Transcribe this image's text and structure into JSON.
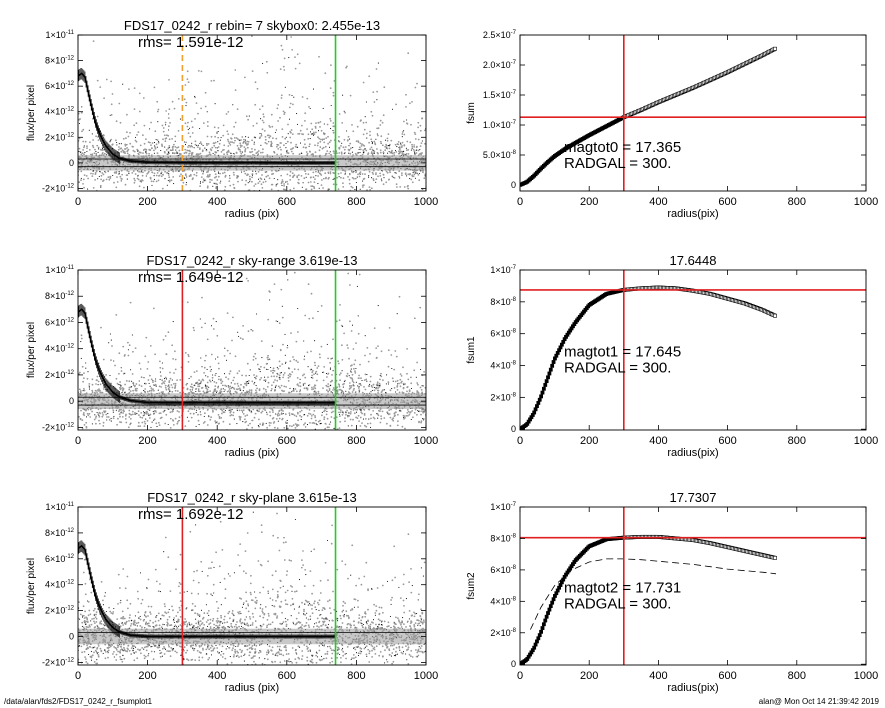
{
  "footer": {
    "left": "/data/alan/fds2/FDS17_0242_r_fsumplot1",
    "right": "alan@  Mon Oct 14 21:39:42 2019"
  },
  "colors": {
    "data_dark": "#000000",
    "data_gray": "#9a9a9a",
    "red_line": "#e02020",
    "green_line": "#22cc22",
    "orange_line": "#f0a030"
  },
  "chart_data": [
    {
      "id": "profile-1",
      "type": "scatter",
      "title": "FDS17_0242_r rebin= 7    skybox0:  2.455e-13",
      "annotation": "rms= 1.591e-12",
      "xlabel": "radius (pix)",
      "ylabel": "flux/per pixel",
      "xlim": [
        0,
        1000
      ],
      "ylim": [
        -2.2e-12,
        1e-11
      ],
      "xticks": [
        0,
        200,
        400,
        600,
        800,
        1000
      ],
      "xtick_labels": [
        "0",
        "200",
        "400",
        "600",
        "800",
        "1000"
      ],
      "yticks": [
        -2e-12,
        0,
        2e-12,
        4e-12,
        6e-12,
        8e-12,
        1e-11
      ],
      "ytick_labels": [
        {
          "b": "-2×10",
          "e": "-12"
        },
        {
          "b": "0",
          "e": ""
        },
        {
          "b": "2×10",
          "e": "-12"
        },
        {
          "b": "4×10",
          "e": "-12"
        },
        {
          "b": "6×10",
          "e": "-12"
        },
        {
          "b": "8×10",
          "e": "-12"
        },
        {
          "b": "1×10",
          "e": "-11"
        }
      ],
      "vlines": [
        {
          "x": 300,
          "color": "orange",
          "dashed": true
        },
        {
          "x": 740,
          "color": "green",
          "dashed": false
        }
      ],
      "hlines": [
        -3e-13,
        3e-13
      ],
      "profile": [
        [
          0,
          6.8e-12
        ],
        [
          10,
          7e-12
        ],
        [
          20,
          6.7e-12
        ],
        [
          30,
          5.5e-12
        ],
        [
          40,
          4.3e-12
        ],
        [
          50,
          3.2e-12
        ],
        [
          60,
          2.4e-12
        ],
        [
          70,
          1.8e-12
        ],
        [
          80,
          1.3e-12
        ],
        [
          100,
          7e-13
        ],
        [
          120,
          3.5e-13
        ],
        [
          150,
          1.5e-13
        ],
        [
          200,
          5e-14
        ],
        [
          300,
          2e-14
        ],
        [
          400,
          1e-14
        ],
        [
          500,
          1e-14
        ],
        [
          600,
          0
        ],
        [
          740,
          0
        ]
      ]
    },
    {
      "id": "fsum-0",
      "type": "line",
      "title": "",
      "annotation_lines": [
        "magtot0 = 17.365",
        "RADGAL =    300."
      ],
      "xlabel": "radius(pix)",
      "ylabel": "fsum",
      "xlim": [
        0,
        1000
      ],
      "ylim": [
        -1e-08,
        2.5e-07
      ],
      "xticks": [
        0,
        200,
        400,
        600,
        800,
        1000
      ],
      "xtick_labels": [
        "0",
        "200",
        "400",
        "600",
        "800",
        "1000"
      ],
      "yticks": [
        0,
        5e-08,
        1e-07,
        1.5e-07,
        2e-07,
        2.5e-07
      ],
      "ytick_labels": [
        {
          "b": "0",
          "e": ""
        },
        {
          "b": "5.0×10",
          "e": "-8"
        },
        {
          "b": "1.0×10",
          "e": "-7"
        },
        {
          "b": "1.5×10",
          "e": "-7"
        },
        {
          "b": "2.0×10",
          "e": "-7"
        },
        {
          "b": "2.5×10",
          "e": "-7"
        }
      ],
      "vline": 300,
      "hline": 1.13e-07,
      "curve": [
        [
          0,
          0
        ],
        [
          20,
          5e-09
        ],
        [
          40,
          1.5e-08
        ],
        [
          60,
          2.7e-08
        ],
        [
          80,
          3.8e-08
        ],
        [
          100,
          4.8e-08
        ],
        [
          130,
          6e-08
        ],
        [
          160,
          7e-08
        ],
        [
          200,
          8.3e-08
        ],
        [
          250,
          9.8e-08
        ],
        [
          300,
          1.13e-07
        ],
        [
          350,
          1.25e-07
        ],
        [
          400,
          1.38e-07
        ],
        [
          450,
          1.5e-07
        ],
        [
          500,
          1.62e-07
        ],
        [
          550,
          1.75e-07
        ],
        [
          600,
          1.88e-07
        ],
        [
          650,
          2.02e-07
        ],
        [
          700,
          2.16e-07
        ],
        [
          740,
          2.28e-07
        ]
      ],
      "curve2": []
    },
    {
      "id": "profile-2",
      "type": "scatter",
      "title": "FDS17_0242_r sky-range  3.619e-13",
      "annotation": "rms= 1.649e-12",
      "xlabel": "radius (pix)",
      "ylabel": "flux/per pixel",
      "xlim": [
        0,
        1000
      ],
      "ylim": [
        -2.2e-12,
        1e-11
      ],
      "xticks": [
        0,
        200,
        400,
        600,
        800,
        1000
      ],
      "xtick_labels": [
        "0",
        "200",
        "400",
        "600",
        "800",
        "1000"
      ],
      "yticks": [
        -2e-12,
        0,
        2e-12,
        4e-12,
        6e-12,
        8e-12,
        1e-11
      ],
      "ytick_labels": [
        {
          "b": "-2×10",
          "e": "-12"
        },
        {
          "b": "0",
          "e": ""
        },
        {
          "b": "2×10",
          "e": "-12"
        },
        {
          "b": "4×10",
          "e": "-12"
        },
        {
          "b": "6×10",
          "e": "-12"
        },
        {
          "b": "8×10",
          "e": "-12"
        },
        {
          "b": "1×10",
          "e": "-11"
        }
      ],
      "vlines": [
        {
          "x": 300,
          "color": "red",
          "dashed": false
        },
        {
          "x": 740,
          "color": "green",
          "dashed": false
        }
      ],
      "hlines": [
        -3e-13,
        3e-13
      ],
      "profile": [
        [
          0,
          6.8e-12
        ],
        [
          10,
          7e-12
        ],
        [
          20,
          6.7e-12
        ],
        [
          30,
          5.5e-12
        ],
        [
          40,
          4.3e-12
        ],
        [
          50,
          3.2e-12
        ],
        [
          60,
          2.4e-12
        ],
        [
          70,
          1.8e-12
        ],
        [
          80,
          1.3e-12
        ],
        [
          100,
          7e-13
        ],
        [
          120,
          3e-13
        ],
        [
          150,
          5e-14
        ],
        [
          200,
          -1e-13
        ],
        [
          300,
          -1.2e-13
        ],
        [
          400,
          -1e-13
        ],
        [
          500,
          -1.2e-13
        ],
        [
          600,
          -1.2e-13
        ],
        [
          740,
          -1.2e-13
        ]
      ]
    },
    {
      "id": "fsum-1",
      "type": "line",
      "title": "17.6448",
      "annotation_lines": [
        "magtot1 = 17.645",
        "RADGAL =    300."
      ],
      "xlabel": "radius(pix)",
      "ylabel": "fsum1",
      "xlim": [
        0,
        1000
      ],
      "ylim": [
        -5e-10,
        1e-07
      ],
      "xticks": [
        0,
        200,
        400,
        600,
        800,
        1000
      ],
      "xtick_labels": [
        "0",
        "200",
        "400",
        "600",
        "800",
        "1000"
      ],
      "yticks": [
        0,
        2e-08,
        4e-08,
        6e-08,
        8e-08,
        1e-07
      ],
      "ytick_labels": [
        {
          "b": "0",
          "e": ""
        },
        {
          "b": "2×10",
          "e": "-8"
        },
        {
          "b": "4×10",
          "e": "-8"
        },
        {
          "b": "6×10",
          "e": "-8"
        },
        {
          "b": "8×10",
          "e": "-8"
        },
        {
          "b": "1×10",
          "e": "-7"
        }
      ],
      "vline": 300,
      "hline": 8.75e-08,
      "curve": [
        [
          0,
          0
        ],
        [
          20,
          3e-09
        ],
        [
          40,
          1e-08
        ],
        [
          60,
          2e-08
        ],
        [
          80,
          3.2e-08
        ],
        [
          100,
          4.4e-08
        ],
        [
          130,
          5.7e-08
        ],
        [
          160,
          6.7e-08
        ],
        [
          200,
          7.8e-08
        ],
        [
          250,
          8.5e-08
        ],
        [
          300,
          8.75e-08
        ],
        [
          350,
          8.85e-08
        ],
        [
          400,
          8.9e-08
        ],
        [
          450,
          8.85e-08
        ],
        [
          500,
          8.7e-08
        ],
        [
          550,
          8.5e-08
        ],
        [
          600,
          8.2e-08
        ],
        [
          650,
          7.9e-08
        ],
        [
          700,
          7.5e-08
        ],
        [
          740,
          7.1e-08
        ]
      ],
      "curve2": []
    },
    {
      "id": "profile-3",
      "type": "scatter",
      "title": "FDS17_0242_r sky-plane  3.615e-13",
      "annotation": "rms= 1.692e-12",
      "xlabel": "radius (pix)",
      "ylabel": "flux/per pixel",
      "xlim": [
        0,
        1000
      ],
      "ylim": [
        -2.2e-12,
        1e-11
      ],
      "xticks": [
        0,
        200,
        400,
        600,
        800,
        1000
      ],
      "xtick_labels": [
        "0",
        "200",
        "400",
        "600",
        "800",
        "1000"
      ],
      "yticks": [
        -2e-12,
        0,
        2e-12,
        4e-12,
        6e-12,
        8e-12,
        1e-11
      ],
      "ytick_labels": [
        {
          "b": "-2×10",
          "e": "-12"
        },
        {
          "b": "0",
          "e": ""
        },
        {
          "b": "2×10",
          "e": "-12"
        },
        {
          "b": "4×10",
          "e": "-12"
        },
        {
          "b": "6×10",
          "e": "-12"
        },
        {
          "b": "8×10",
          "e": "-12"
        },
        {
          "b": "1×10",
          "e": "-11"
        }
      ],
      "vlines": [
        {
          "x": 300,
          "color": "red",
          "dashed": false
        },
        {
          "x": 740,
          "color": "green",
          "dashed": false
        }
      ],
      "hlines": [
        3e-13
      ],
      "profile": [
        [
          0,
          6.8e-12
        ],
        [
          10,
          7e-12
        ],
        [
          20,
          6.7e-12
        ],
        [
          30,
          5.5e-12
        ],
        [
          40,
          4.3e-12
        ],
        [
          50,
          3.2e-12
        ],
        [
          60,
          2.4e-12
        ],
        [
          70,
          1.8e-12
        ],
        [
          80,
          1.3e-12
        ],
        [
          100,
          7e-13
        ],
        [
          120,
          3.5e-13
        ],
        [
          150,
          1e-13
        ],
        [
          200,
          0
        ],
        [
          300,
          0
        ],
        [
          400,
          0
        ],
        [
          500,
          0
        ],
        [
          600,
          0
        ],
        [
          740,
          0
        ]
      ]
    },
    {
      "id": "fsum-2",
      "type": "line",
      "title": "17.7307",
      "annotation_lines": [
        "magtot2 = 17.731",
        "RADGAL =    300."
      ],
      "xlabel": "radius(pix)",
      "ylabel": "fsum2",
      "xlim": [
        0,
        1000
      ],
      "ylim": [
        -5e-10,
        1e-07
      ],
      "xticks": [
        0,
        200,
        400,
        600,
        800,
        1000
      ],
      "xtick_labels": [
        "0",
        "200",
        "400",
        "600",
        "800",
        "1000"
      ],
      "yticks": [
        0,
        2e-08,
        4e-08,
        6e-08,
        8e-08,
        1e-07
      ],
      "ytick_labels": [
        {
          "b": "0",
          "e": ""
        },
        {
          "b": "2×10",
          "e": "-8"
        },
        {
          "b": "4×10",
          "e": "-8"
        },
        {
          "b": "6×10",
          "e": "-8"
        },
        {
          "b": "8×10",
          "e": "-8"
        },
        {
          "b": "1×10",
          "e": "-7"
        }
      ],
      "vline": 300,
      "hline": 8.05e-08,
      "curve": [
        [
          0,
          0
        ],
        [
          20,
          3e-09
        ],
        [
          40,
          1e-08
        ],
        [
          60,
          2e-08
        ],
        [
          80,
          3.2e-08
        ],
        [
          100,
          4.3e-08
        ],
        [
          130,
          5.6e-08
        ],
        [
          160,
          6.6e-08
        ],
        [
          200,
          7.5e-08
        ],
        [
          250,
          7.95e-08
        ],
        [
          300,
          8.05e-08
        ],
        [
          350,
          8.1e-08
        ],
        [
          400,
          8.1e-08
        ],
        [
          450,
          8e-08
        ],
        [
          500,
          7.9e-08
        ],
        [
          550,
          7.7e-08
        ],
        [
          600,
          7.45e-08
        ],
        [
          650,
          7.2e-08
        ],
        [
          700,
          6.95e-08
        ],
        [
          740,
          6.75e-08
        ]
      ],
      "curve2": [
        [
          30,
          2.2e-08
        ],
        [
          60,
          3.6e-08
        ],
        [
          100,
          5e-08
        ],
        [
          150,
          6e-08
        ],
        [
          200,
          6.5e-08
        ],
        [
          250,
          6.7e-08
        ],
        [
          300,
          6.7e-08
        ],
        [
          350,
          6.65e-08
        ],
        [
          400,
          6.55e-08
        ],
        [
          450,
          6.45e-08
        ],
        [
          500,
          6.35e-08
        ],
        [
          550,
          6.2e-08
        ],
        [
          600,
          6.05e-08
        ],
        [
          650,
          5.95e-08
        ],
        [
          700,
          5.85e-08
        ],
        [
          740,
          5.75e-08
        ]
      ]
    }
  ]
}
